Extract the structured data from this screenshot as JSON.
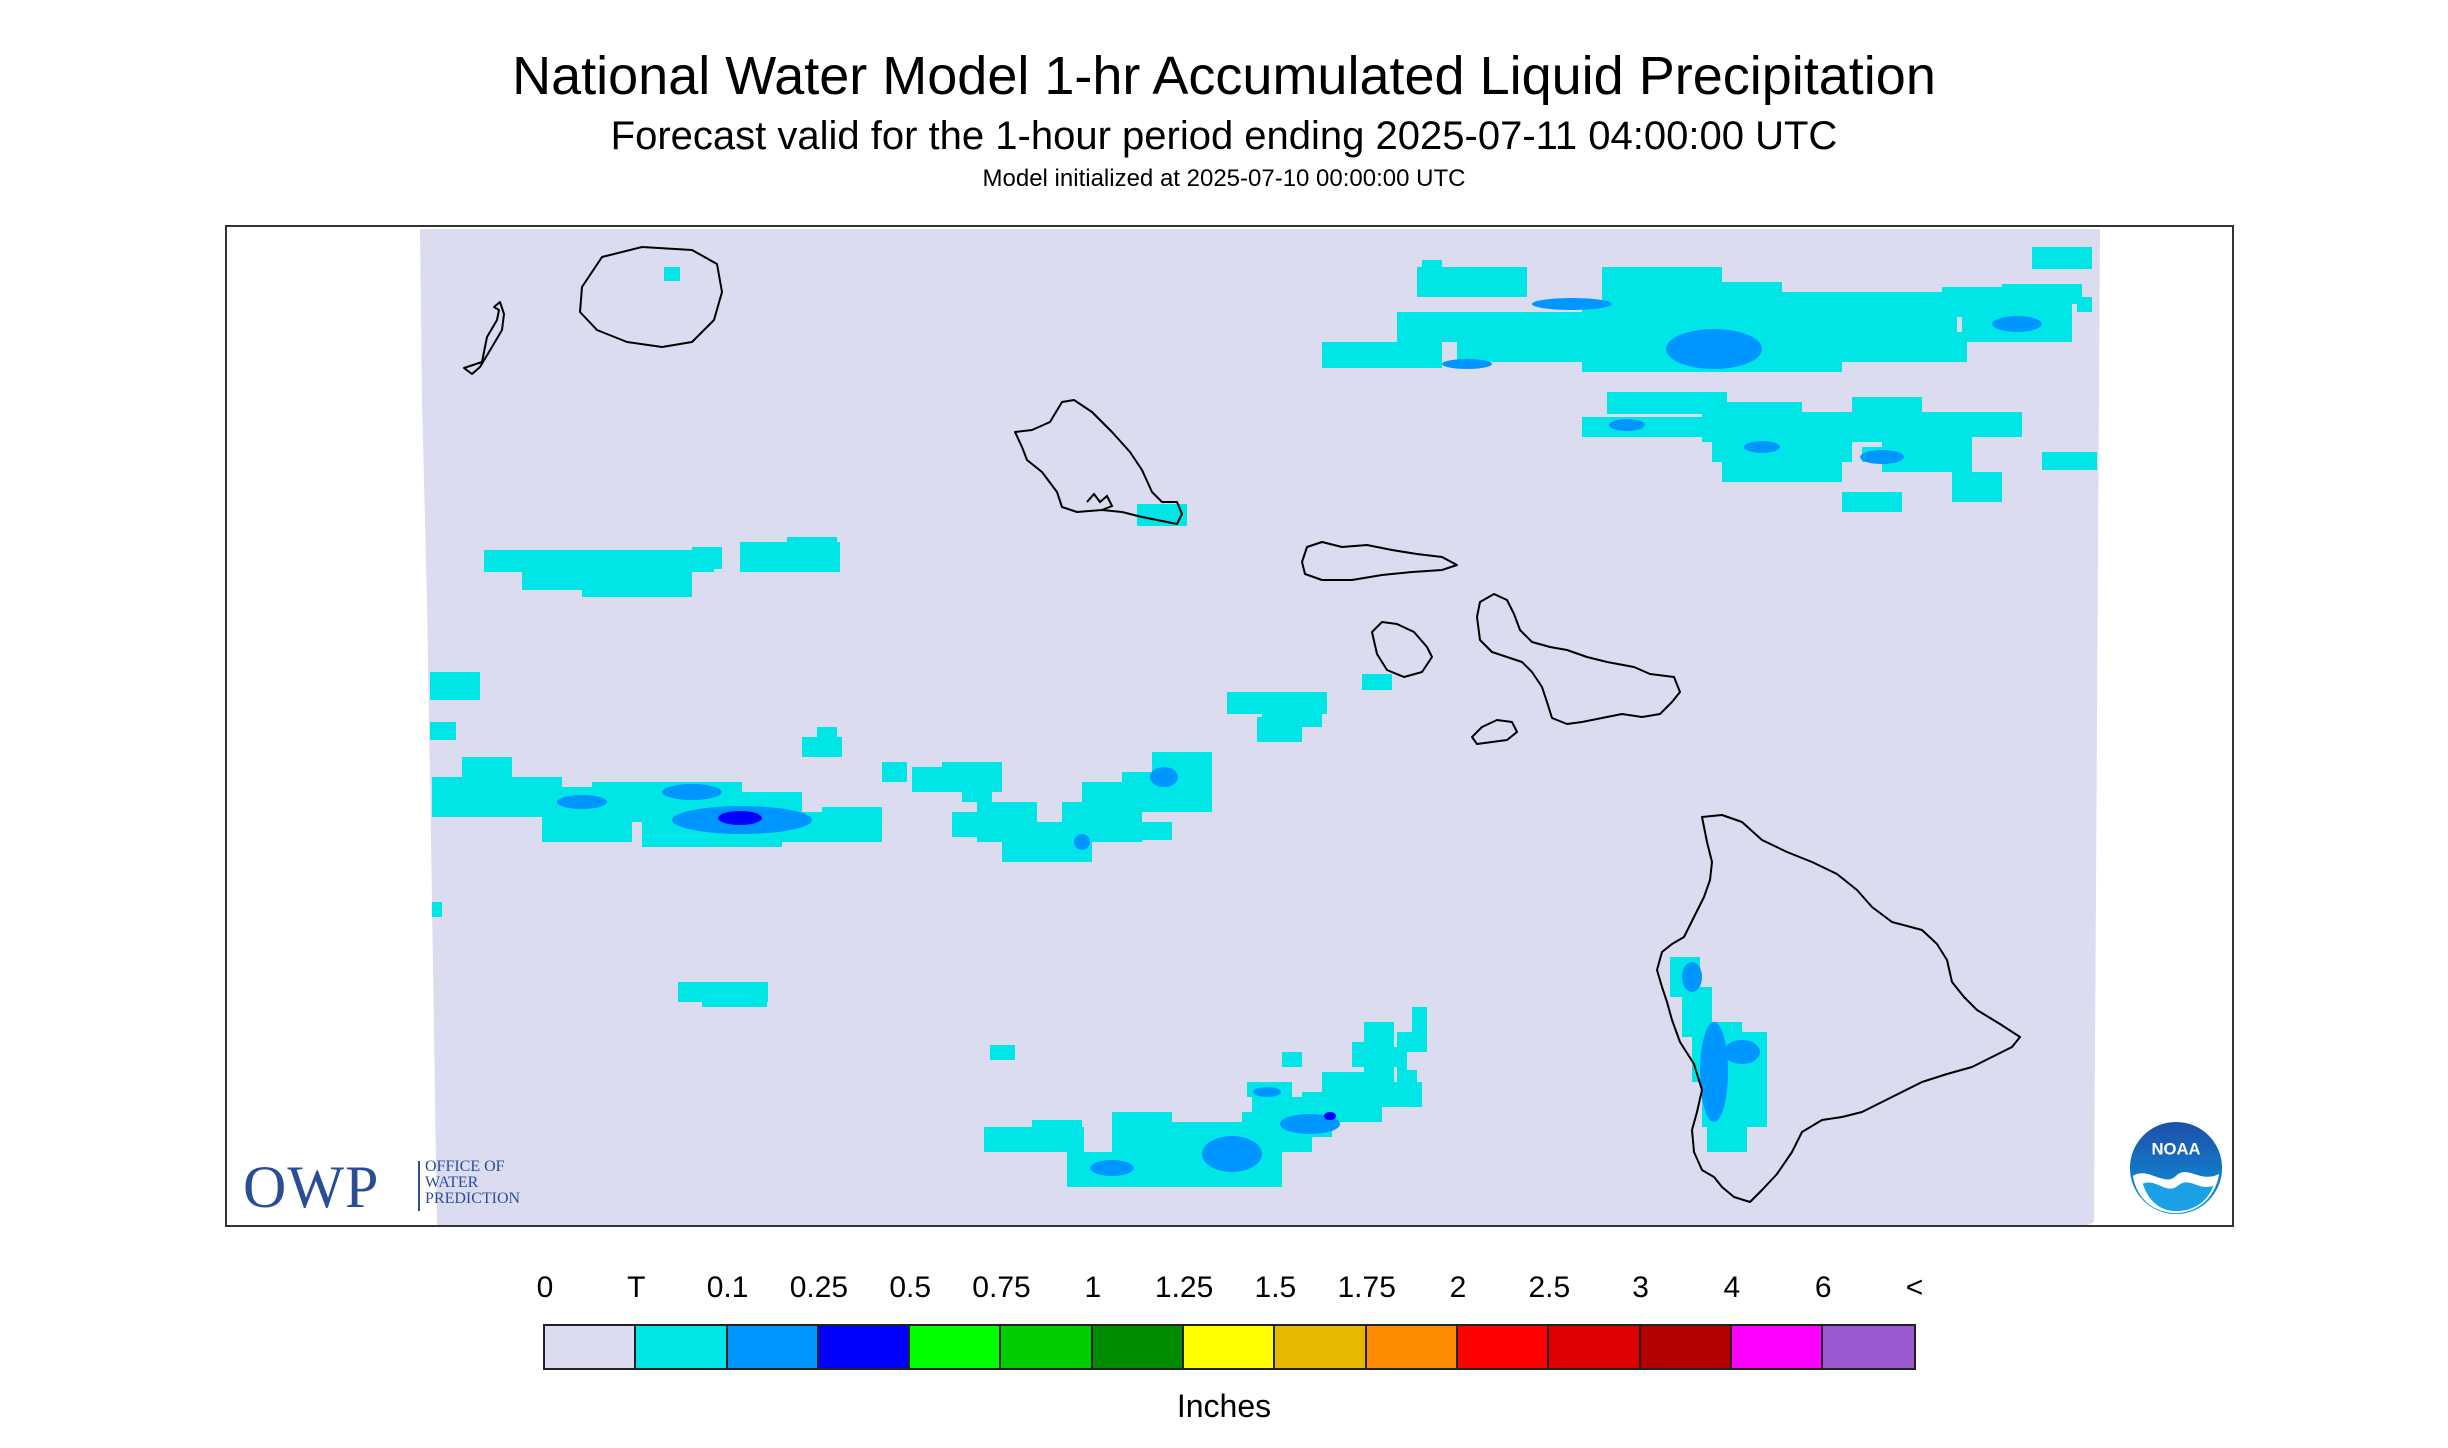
{
  "title": "National Water Model 1-hr Accumulated Liquid Precipitation",
  "subtitle": "Forecast valid for the 1-hour period ending 2025-07-11 04:00:00 UTC",
  "init_text": "Model initialized at 2025-07-10 00:00:00 UTC",
  "owp_logo": {
    "letters": "OWP",
    "line1": "OFFICE OF",
    "line2": "WATER",
    "line3": "PREDICTION"
  },
  "noaa_logo": {
    "text": "NOAA"
  },
  "legend": {
    "units": "Inches",
    "labels": [
      "0",
      "T",
      "0.1",
      "0.25",
      "0.5",
      "0.75",
      "1",
      "1.25",
      "1.5",
      "1.75",
      "2",
      "2.5",
      "3",
      "4",
      "6",
      "<"
    ],
    "colors": [
      "#dcdcf0",
      "#00e6e6",
      "#0096ff",
      "#0000ff",
      "#00ff00",
      "#00cc00",
      "#008c00",
      "#ffff00",
      "#e6b800",
      "#ff8c00",
      "#ff0000",
      "#dc0000",
      "#b40000",
      "#ff00ff",
      "#9b59d0"
    ]
  },
  "colors": {
    "background_domain": "#dcdcf0",
    "trace": "#00e6e6",
    "light": "#0096ff",
    "moderate": "#0000ff",
    "coast": "#000000",
    "logo_blue": "#2a4e96"
  }
}
